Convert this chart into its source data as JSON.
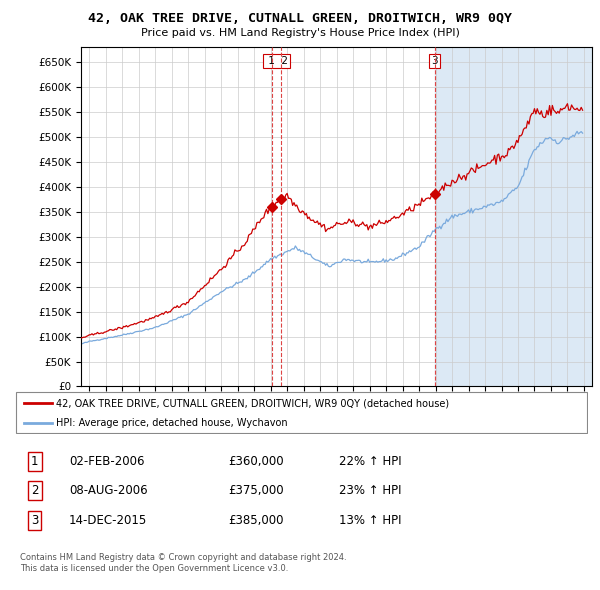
{
  "title": "42, OAK TREE DRIVE, CUTNALL GREEN, DROITWICH, WR9 0QY",
  "subtitle": "Price paid vs. HM Land Registry's House Price Index (HPI)",
  "legend_red": "42, OAK TREE DRIVE, CUTNALL GREEN, DROITWICH, WR9 0QY (detached house)",
  "legend_blue": "HPI: Average price, detached house, Wychavon",
  "footer1": "Contains HM Land Registry data © Crown copyright and database right 2024.",
  "footer2": "This data is licensed under the Open Government Licence v3.0.",
  "transactions": [
    {
      "num": 1,
      "date": "02-FEB-2006",
      "price": "£360,000",
      "pct": "22%",
      "dir": "↑"
    },
    {
      "num": 2,
      "date": "08-AUG-2006",
      "price": "£375,000",
      "pct": "23%",
      "dir": "↑"
    },
    {
      "num": 3,
      "date": "14-DEC-2015",
      "price": "£385,000",
      "pct": "13%",
      "dir": "↑"
    }
  ],
  "vline1": 2006.09,
  "vline2": 2006.6,
  "vline3": 2015.96,
  "marker1_y": 360000,
  "marker2_y": 375000,
  "marker3_y": 385000,
  "ylim": [
    0,
    680000
  ],
  "xlim": [
    1994.5,
    2025.5
  ],
  "yticks": [
    0,
    50000,
    100000,
    150000,
    200000,
    250000,
    300000,
    350000,
    400000,
    450000,
    500000,
    550000,
    600000,
    650000
  ],
  "xticks": [
    1995,
    1996,
    1997,
    1998,
    1999,
    2000,
    2001,
    2002,
    2003,
    2004,
    2005,
    2006,
    2007,
    2008,
    2009,
    2010,
    2011,
    2012,
    2013,
    2014,
    2015,
    2016,
    2017,
    2018,
    2019,
    2020,
    2021,
    2022,
    2023,
    2024,
    2025
  ],
  "bg_color": "#ffffff",
  "grid_color": "#cccccc",
  "shade_color": "#dce9f5",
  "red_line_color": "#cc0000",
  "blue_line_color": "#7aaadd",
  "vline_color": "#dd4444"
}
